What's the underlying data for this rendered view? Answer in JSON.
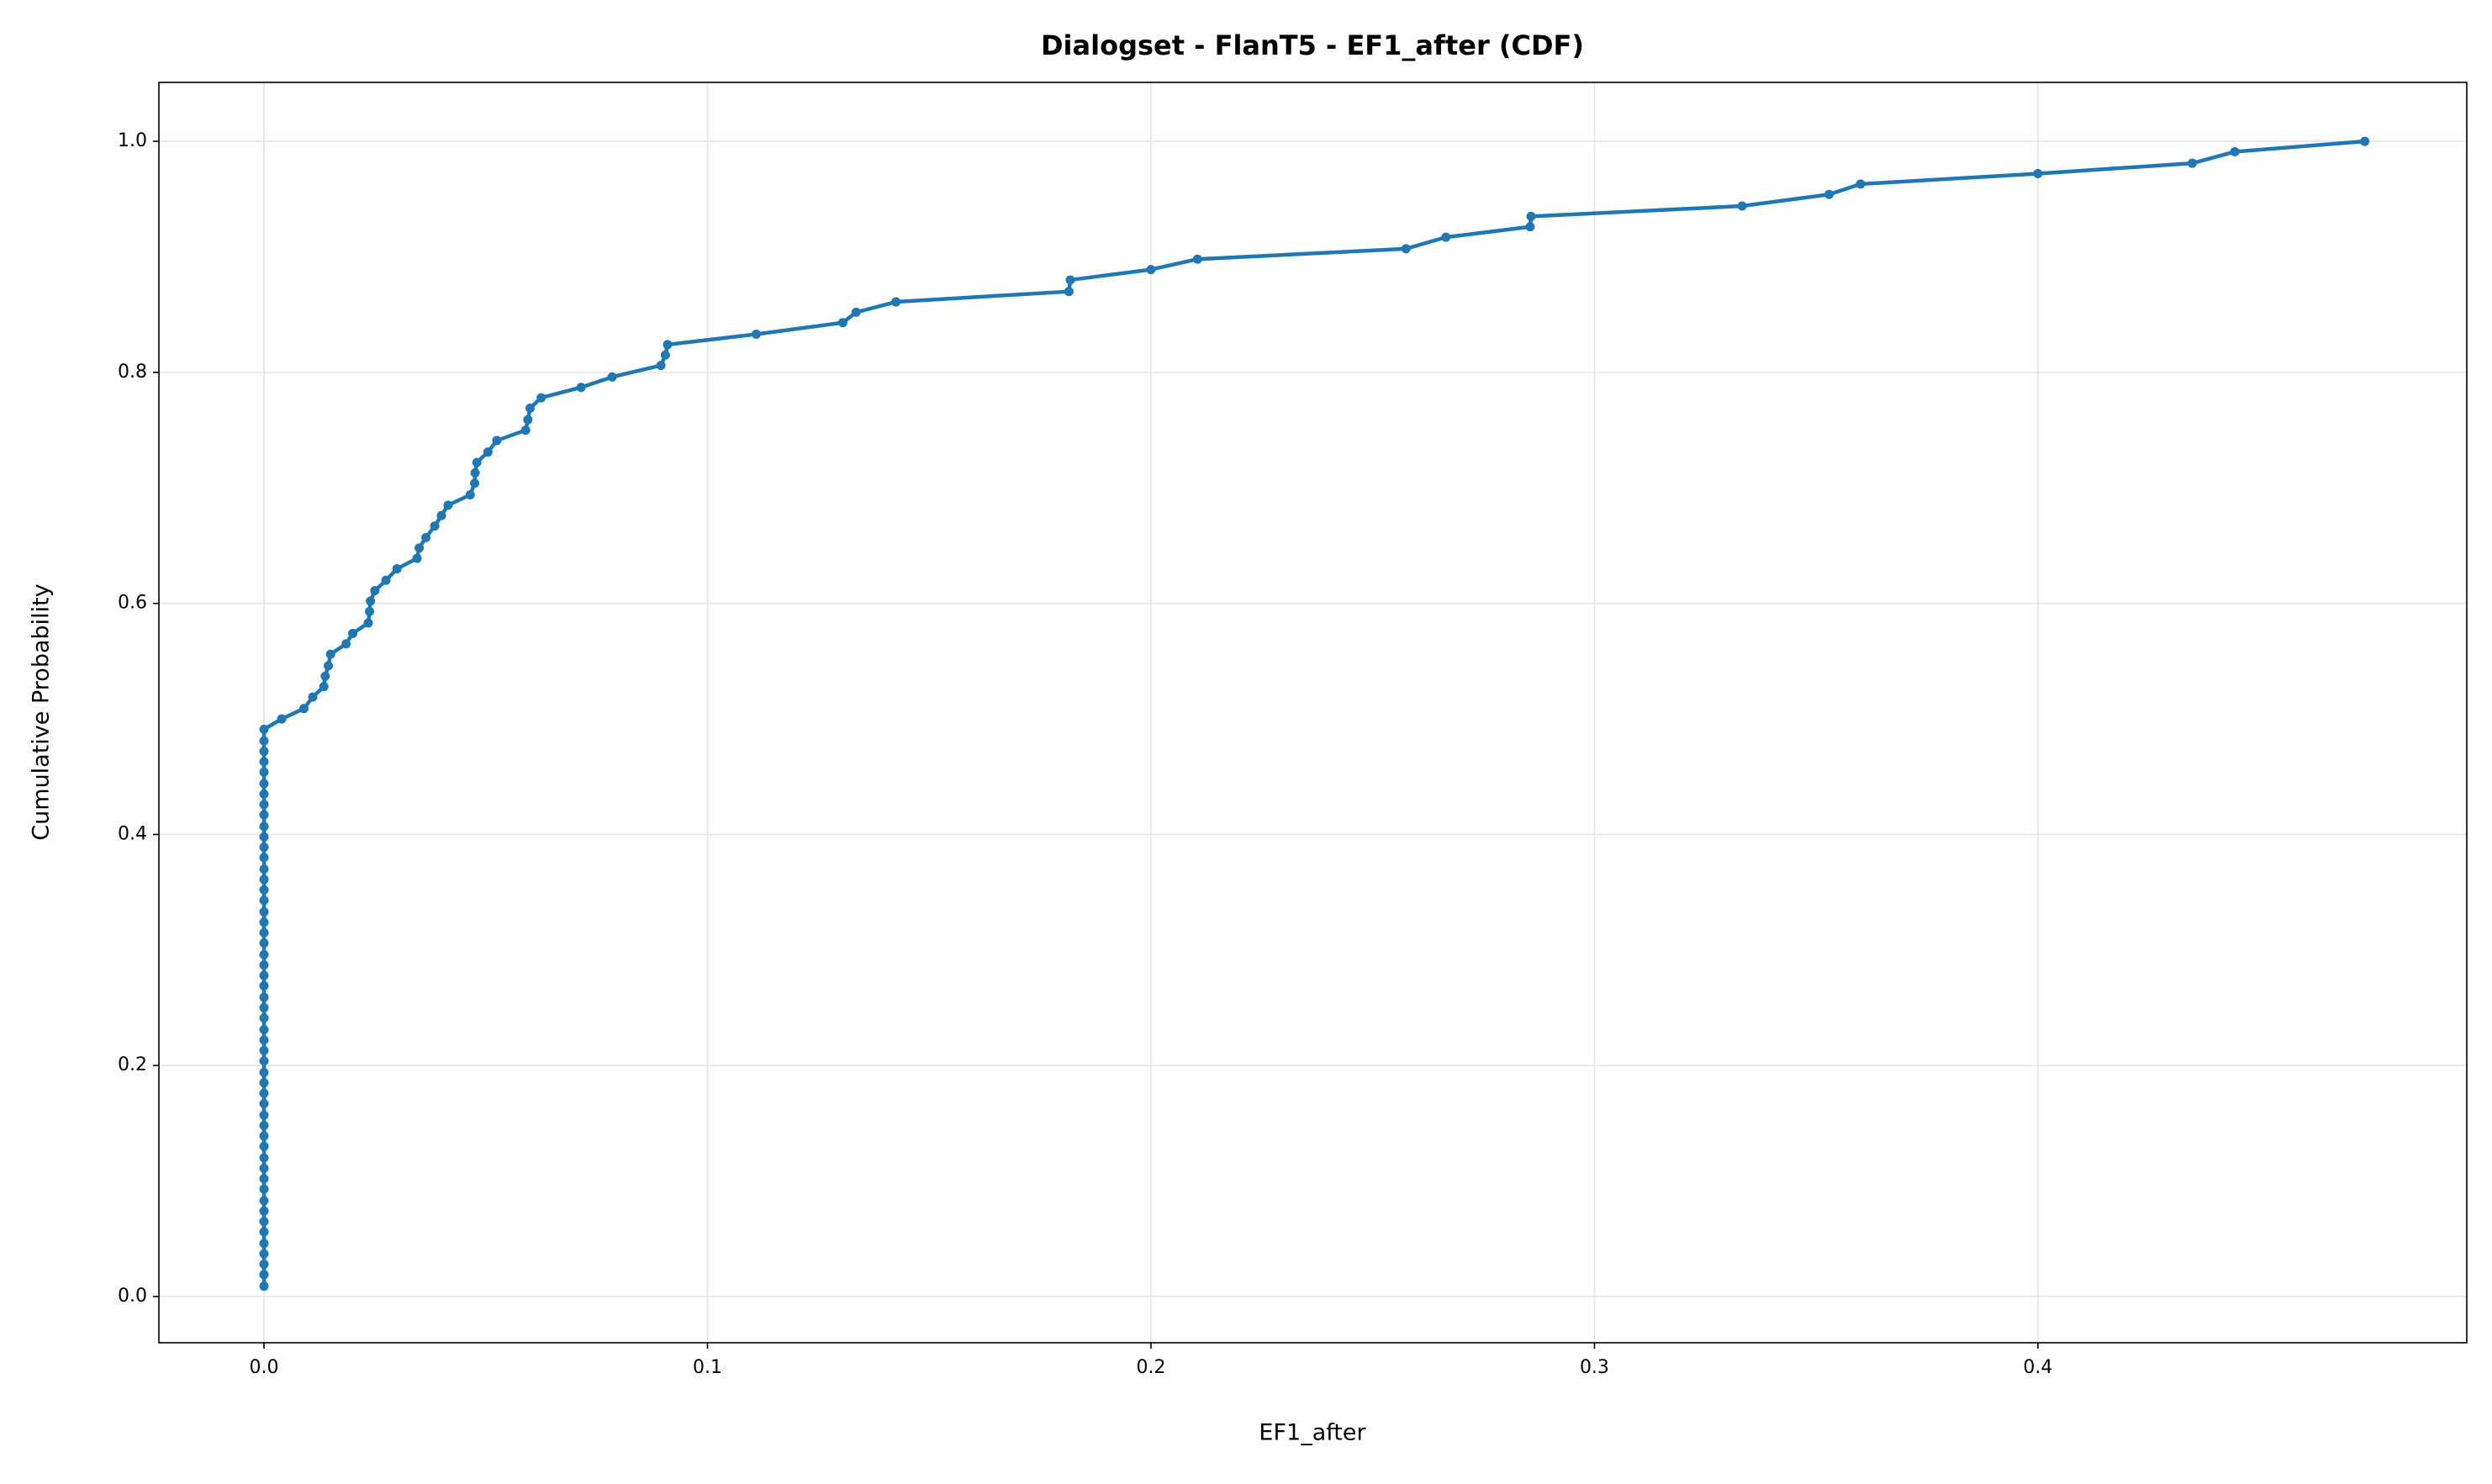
{
  "chart_data": {
    "type": "line",
    "title": "Dialogset - FlanT5 - EF1_after (CDF)",
    "x_label": "EF1_after",
    "y_label": "Cumulative Probability",
    "x": [
      0,
      0,
      0,
      0,
      0,
      0,
      0,
      0,
      0,
      0,
      0,
      0,
      0,
      0,
      0,
      0,
      0,
      0,
      0,
      0,
      0,
      0,
      0,
      0,
      0,
      0,
      0,
      0,
      0,
      0,
      0,
      0,
      0,
      0,
      0,
      0,
      0,
      0,
      0,
      0,
      0,
      0,
      0,
      0,
      0,
      0,
      0,
      0,
      0,
      0,
      0,
      0,
      0,
      0.004,
      0.009,
      0.011,
      0.0135,
      0.0138,
      0.0145,
      0.015,
      0.0185,
      0.02,
      0.0235,
      0.0238,
      0.024,
      0.025,
      0.0275,
      0.03,
      0.0345,
      0.035,
      0.0365,
      0.0385,
      0.04,
      0.0415,
      0.0465,
      0.0475,
      0.0476,
      0.048,
      0.0505,
      0.0525,
      0.059,
      0.0595,
      0.06,
      0.0625,
      0.0715,
      0.0785,
      0.0895,
      0.0905,
      0.091,
      0.111,
      0.1305,
      0.1335,
      0.1425,
      0.1815,
      0.1818,
      0.2,
      0.2105,
      0.2575,
      0.2665,
      0.2855,
      0.2857,
      0.3333,
      0.3529,
      0.36,
      0.4,
      0.4348,
      0.4444,
      0.4737
    ],
    "series": [
      {
        "color": "#1f77b4",
        "values": [
          0.009,
          0.019,
          0.028,
          0.037,
          0.046,
          0.056,
          0.065,
          0.074,
          0.083,
          0.093,
          0.102,
          0.111,
          0.12,
          0.13,
          0.139,
          0.148,
          0.157,
          0.167,
          0.176,
          0.185,
          0.194,
          0.204,
          0.213,
          0.222,
          0.231,
          0.241,
          0.25,
          0.259,
          0.269,
          0.278,
          0.287,
          0.296,
          0.306,
          0.315,
          0.324,
          0.333,
          0.343,
          0.352,
          0.361,
          0.37,
          0.38,
          0.389,
          0.398,
          0.407,
          0.417,
          0.426,
          0.435,
          0.444,
          0.454,
          0.463,
          0.472,
          0.481,
          0.491,
          0.5,
          0.509,
          0.519,
          0.528,
          0.537,
          0.546,
          0.556,
          0.565,
          0.574,
          0.583,
          0.593,
          0.602,
          0.611,
          0.62,
          0.63,
          0.639,
          0.648,
          0.657,
          0.667,
          0.676,
          0.685,
          0.694,
          0.704,
          0.713,
          0.722,
          0.731,
          0.741,
          0.75,
          0.759,
          0.769,
          0.778,
          0.787,
          0.796,
          0.806,
          0.815,
          0.824,
          0.833,
          0.843,
          0.852,
          0.861,
          0.87,
          0.88,
          0.889,
          0.898,
          0.907,
          0.917,
          0.926,
          0.935,
          0.944,
          0.954,
          0.963,
          0.972,
          0.981,
          0.991,
          1.0
        ]
      }
    ],
    "xlim": [
      -0.0237,
      0.4967
    ],
    "ylim": [
      -0.04,
      1.051
    ],
    "xticks": [
      {
        "value": 0,
        "label": "0.0"
      },
      0.1,
      0.2,
      0.3,
      0.4
    ],
    "yticks": [
      {
        "value": 0,
        "label": "0.0"
      },
      0.2,
      0.4,
      0.6,
      0.8,
      {
        "value": 1,
        "label": "1.0"
      }
    ],
    "grid": true
  }
}
